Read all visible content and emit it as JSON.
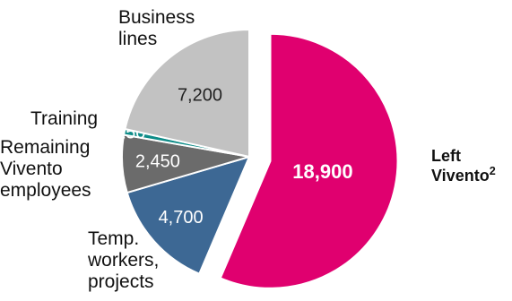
{
  "chart_data": {
    "type": "pie",
    "exploded_slice": "Left Vivento",
    "slices": [
      {
        "name": "Left Vivento",
        "value": 18900,
        "value_label": "18,900",
        "color": "#e0006f",
        "value_label_color": "#ffffff",
        "value_label_bold": true
      },
      {
        "name": "Temp. workers, projects",
        "value": 4700,
        "value_label": "4,700",
        "color": "#3d6894",
        "value_label_color": "#ffffff",
        "value_label_bold": false
      },
      {
        "name": "Remaining Vivento employees",
        "value": 2450,
        "value_label": "2,450",
        "color": "#6b6b6b",
        "value_label_color": "#ffffff",
        "value_label_bold": false
      },
      {
        "name": "Training",
        "value": 250,
        "value_label": "250",
        "color": "#0e8c88",
        "value_label_color": "#ffffff",
        "value_label_bold": false
      },
      {
        "name": "Business lines",
        "value": 7200,
        "value_label": "7,200",
        "color": "#c2c2c2",
        "value_label_color": "#222222",
        "value_label_bold": false
      }
    ],
    "labels": {
      "left_vivento_main": "Left\nVivento",
      "left_vivento_sup": "2",
      "temp_workers": "Temp.\nworkers,\nprojects",
      "remaining": "Remaining\nVivento\nemployees",
      "training": "Training",
      "business_lines": "Business\nlines"
    }
  }
}
